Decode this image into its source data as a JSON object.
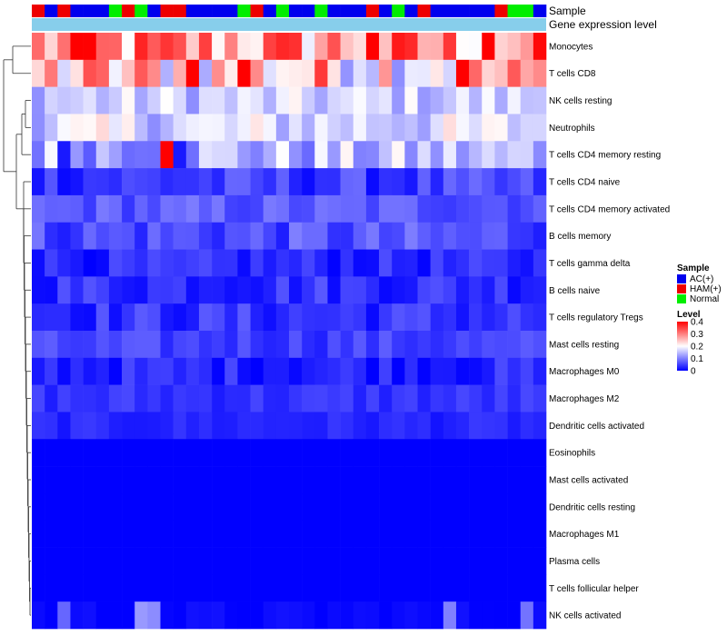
{
  "chart_data": {
    "type": "heatmap",
    "title": "",
    "annotation_labels": {
      "sample": "Sample",
      "gene": "Gene expression level"
    },
    "rows": [
      "Monocytes",
      "T cells CD8",
      "NK cells resting",
      "Neutrophils",
      "T cells CD4 memory resting",
      "T cells CD4 naive",
      "T cells CD4 memory activated",
      "B cells memory",
      "T cells gamma delta",
      "B cells naive",
      "T cells regulatory  Tregs",
      "Mast cells resting",
      "Macrophages M0",
      "Macrophages M2",
      "Dendritic cells activated",
      "Eosinophils",
      "Mast cells activated",
      "Dendritic cells resting",
      "Macrophages M1",
      "Plasma cells",
      "T cells follicular helper",
      "NK cells activated"
    ],
    "n_columns": 40,
    "sample_groups": [
      "HAM(+)",
      "AC(+)",
      "HAM(+)",
      "AC(+)",
      "AC(+)",
      "AC(+)",
      "Normal",
      "HAM(+)",
      "Normal",
      "AC(+)",
      "HAM(+)",
      "HAM(+)",
      "AC(+)",
      "AC(+)",
      "AC(+)",
      "AC(+)",
      "Normal",
      "HAM(+)",
      "AC(+)",
      "Normal",
      "AC(+)",
      "AC(+)",
      "Normal",
      "AC(+)",
      "AC(+)",
      "AC(+)",
      "HAM(+)",
      "AC(+)",
      "Normal",
      "AC(+)",
      "HAM(+)",
      "AC(+)",
      "AC(+)",
      "AC(+)",
      "AC(+)",
      "AC(+)",
      "HAM(+)",
      "Normal",
      "Normal",
      "AC(+)"
    ],
    "row_means": [
      0.28,
      0.24,
      0.16,
      0.17,
      0.14,
      0.045,
      0.07,
      0.06,
      0.03,
      0.04,
      0.04,
      0.05,
      0.03,
      0.04,
      0.03,
      0.0,
      0.0,
      0.0,
      0.0,
      0.0,
      0.0,
      0.005
    ],
    "row_spread": [
      0.12,
      0.13,
      0.05,
      0.06,
      0.07,
      0.04,
      0.03,
      0.04,
      0.03,
      0.035,
      0.035,
      0.025,
      0.03,
      0.02,
      0.015,
      0.0,
      0.0,
      0.0,
      0.0,
      0.0,
      0.0,
      0.01
    ],
    "strong_cells": [
      {
        "row": 0,
        "col": 3,
        "value": 0.41
      },
      {
        "row": 0,
        "col": 26,
        "value": 0.42
      },
      {
        "row": 0,
        "col": 35,
        "value": 0.43
      },
      {
        "row": 1,
        "col": 12,
        "value": 0.42
      },
      {
        "row": 1,
        "col": 16,
        "value": 0.42
      },
      {
        "row": 1,
        "col": 33,
        "value": 0.42
      },
      {
        "row": 4,
        "col": 10,
        "value": 0.4
      },
      {
        "row": 4,
        "col": 11,
        "value": 0.02
      },
      {
        "row": 4,
        "col": 2,
        "value": 0.02
      },
      {
        "row": 21,
        "col": 2,
        "value": 0.08
      },
      {
        "row": 21,
        "col": 8,
        "value": 0.12
      },
      {
        "row": 21,
        "col": 9,
        "value": 0.11
      },
      {
        "row": 21,
        "col": 32,
        "value": 0.1
      },
      {
        "row": 21,
        "col": 38,
        "value": 0.09
      }
    ],
    "legend": {
      "sample_title": "Sample",
      "sample_entries": [
        {
          "label": "AC(+)",
          "color": "#0000ee"
        },
        {
          "label": "HAM(+)",
          "color": "#ee0000"
        },
        {
          "label": "Normal",
          "color": "#00ee00"
        }
      ],
      "level_title": "Level",
      "level_ticks": [
        "0.4",
        "0.3",
        "0.2",
        "0.1",
        "0"
      ],
      "level_range": [
        0,
        0.4
      ]
    },
    "colors": {
      "low": "#0000ff",
      "mid": "#ffffff",
      "high": "#ff0000",
      "gene_bar": "#87ceeb"
    }
  }
}
